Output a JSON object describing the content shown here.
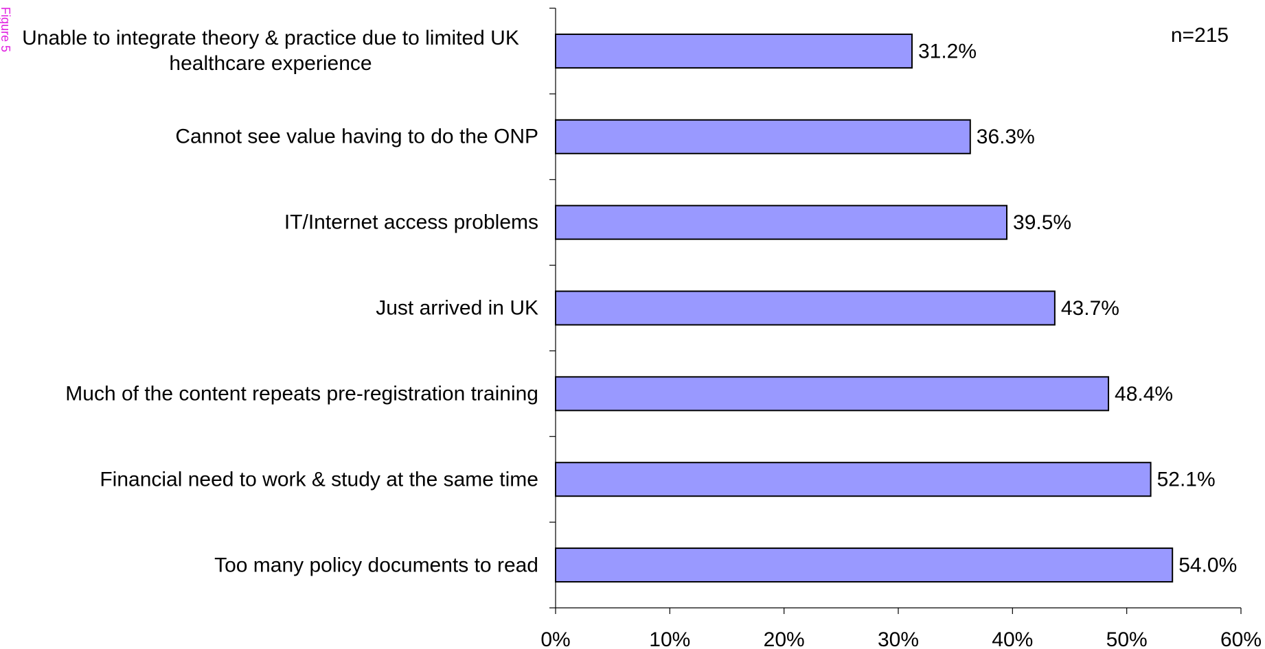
{
  "chart_data": {
    "type": "bar",
    "orientation": "horizontal",
    "annotations": [
      "n=215",
      "Figure 5"
    ],
    "categories": [
      "Unable to integrate theory & practice due to limited UK healthcare experience",
      "Cannot see value having to do the ONP",
      "IT/Internet access problems",
      "Just arrived in UK",
      "Much of the content repeats pre-registration training",
      "Financial need to work & study at the same time",
      "Too many policy documents to read"
    ],
    "values": [
      31.2,
      36.3,
      39.5,
      43.7,
      48.4,
      52.1,
      54.0
    ],
    "value_labels": [
      "31.2%",
      "36.3%",
      "39.5%",
      "43.7%",
      "48.4%",
      "52.1%",
      "54.0%"
    ],
    "color": "#9999ff",
    "xlim": [
      0,
      60
    ],
    "xticks": [
      {
        "value": 0,
        "label": "0%"
      },
      {
        "value": 10,
        "label": "10%"
      },
      {
        "value": 20,
        "label": "20%"
      },
      {
        "value": 30,
        "label": "30%"
      },
      {
        "value": 40,
        "label": "40%"
      },
      {
        "value": 50,
        "label": "50%"
      },
      {
        "value": 60,
        "label": "60%"
      }
    ],
    "grid": false
  }
}
